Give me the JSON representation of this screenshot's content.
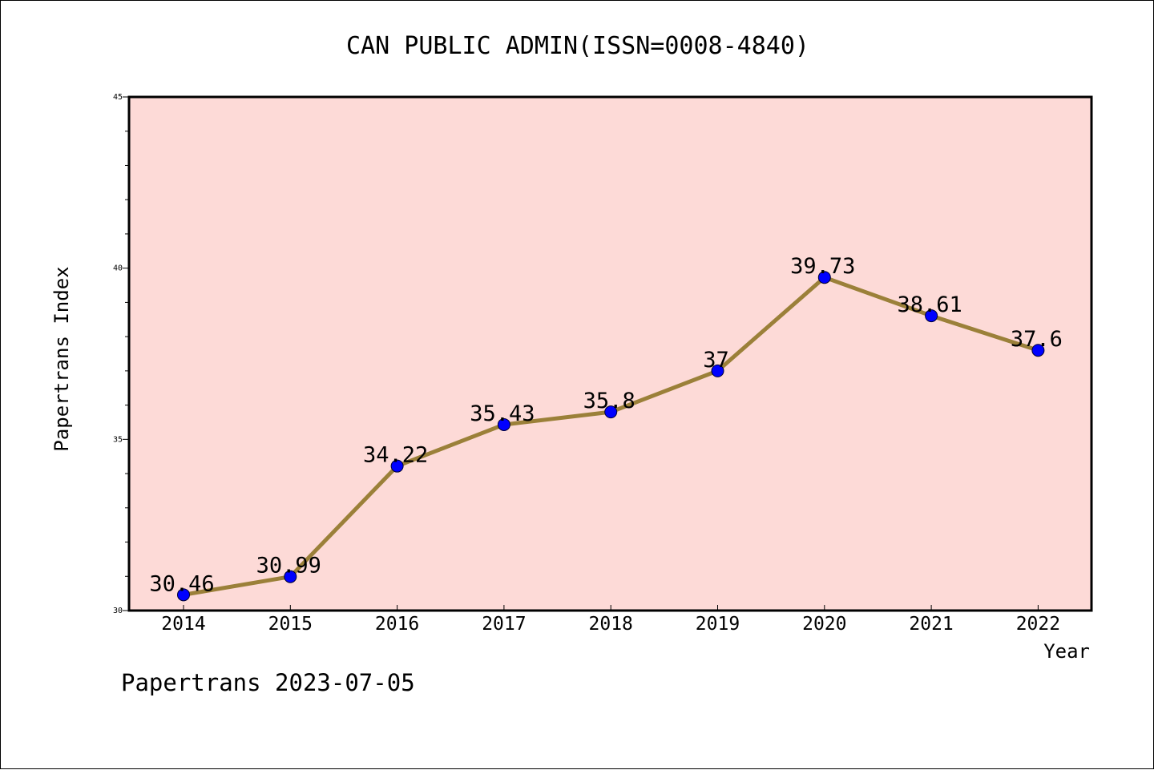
{
  "chart_data": {
    "type": "line",
    "title": "CAN PUBLIC ADMIN(ISSN=0008-4840)",
    "xlabel": "Year",
    "ylabel": "Papertrans Index",
    "categories": [
      "2014",
      "2015",
      "2016",
      "2017",
      "2018",
      "2019",
      "2020",
      "2021",
      "2022"
    ],
    "series": [
      {
        "values": [
          30.46,
          30.99,
          34.22,
          35.43,
          35.8,
          37,
          39.73,
          38.61,
          37.6
        ],
        "labels": [
          "30.46",
          "30.99",
          "34.22",
          "35.43",
          "35.8",
          "37",
          "39.73",
          "38.61",
          "37.6"
        ]
      }
    ],
    "ylim": [
      30,
      45
    ],
    "yticks": [
      "30",
      "35",
      "40",
      "45"
    ],
    "grid": false,
    "legend": "none",
    "colors": {
      "plot_background": "#fddad7",
      "line": "#9b8039",
      "marker": "#0000ff"
    }
  },
  "footer": "Papertrans 2023-07-05"
}
